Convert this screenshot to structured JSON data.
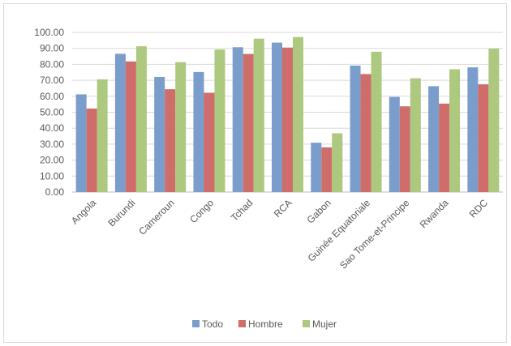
{
  "chart_data": {
    "type": "bar",
    "categories": [
      "Angola",
      "Burundi",
      "Cameroun",
      "Congo",
      "Tchad",
      "RCA",
      "Gabon",
      "Guinée Equatoriale",
      "Sao Tome-et-Principe",
      "Rwanda",
      "RDC"
    ],
    "series": [
      {
        "name": "Todo",
        "color": "#7a9dcb",
        "values": [
          61.2,
          86.6,
          72.1,
          75.2,
          90.7,
          93.6,
          30.9,
          79.2,
          59.6,
          66.3,
          78.1
        ]
      },
      {
        "name": "Hombre",
        "color": "#cf6d6b",
        "values": [
          52.3,
          81.8,
          64.4,
          62.2,
          86.5,
          90.5,
          28.0,
          73.9,
          53.7,
          55.4,
          67.5
        ]
      },
      {
        "name": "Mujer",
        "color": "#adc87f",
        "values": [
          70.6,
          91.3,
          81.4,
          89.3,
          96.1,
          97.1,
          36.8,
          87.9,
          71.3,
          76.9,
          89.8
        ]
      }
    ],
    "ylim": [
      0,
      100
    ],
    "yticks": [
      "0.00",
      "10.00",
      "20.00",
      "30.00",
      "40.00",
      "50.00",
      "60.00",
      "70.00",
      "80.00",
      "90.00",
      "100.00"
    ],
    "grid": true,
    "legend_position": "bottom"
  }
}
